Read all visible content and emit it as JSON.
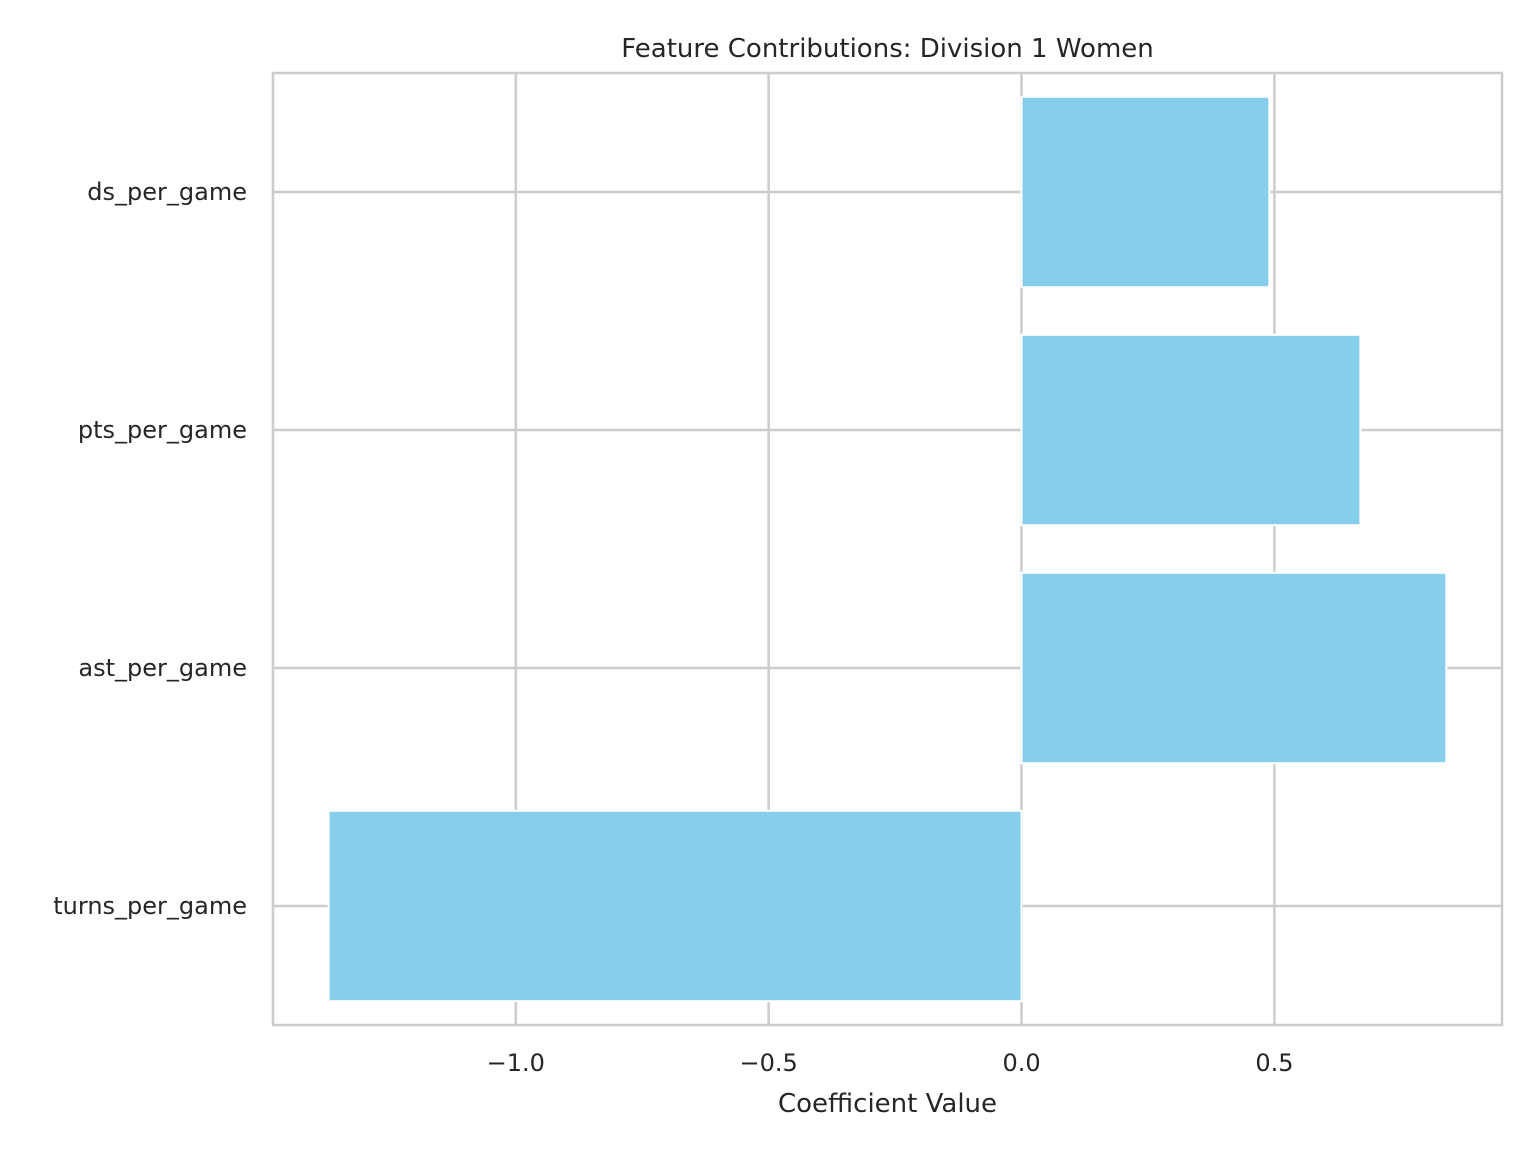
{
  "chart_data": {
    "type": "bar",
    "orientation": "horizontal",
    "title": "Feature Contributions: Division 1 Women",
    "xlabel": "Coefficient Value",
    "ylabel": "",
    "categories": [
      "turns_per_game",
      "ast_per_game",
      "pts_per_game",
      "ds_per_game"
    ],
    "values": [
      -1.37,
      0.84,
      0.67,
      0.49
    ],
    "xlim": [
      -1.48,
      0.95
    ],
    "xticks": [
      -1.0,
      -0.5,
      0.0,
      0.5
    ],
    "xtick_labels": [
      "−1.0",
      "−0.5",
      "0.0",
      "0.5"
    ],
    "grid": true,
    "bar_color": "#87CEEB",
    "grid_color": "#cccccc",
    "spine_color": "#cccccc",
    "background": "#ffffff"
  }
}
